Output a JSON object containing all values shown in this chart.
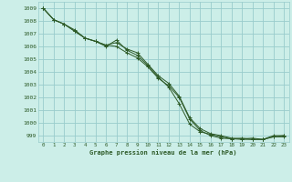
{
  "title": "Graphe pression niveau de la mer (hPa)",
  "background_color": "#cceee8",
  "grid_color": "#99cccc",
  "line_color": "#2d5a27",
  "xlim": [
    -0.5,
    23.5
  ],
  "ylim": [
    998.5,
    1009.5
  ],
  "yticks": [
    999,
    1000,
    1001,
    1002,
    1003,
    1004,
    1005,
    1006,
    1007,
    1008,
    1009
  ],
  "xticks": [
    0,
    1,
    2,
    3,
    4,
    5,
    6,
    7,
    8,
    9,
    10,
    11,
    12,
    13,
    14,
    15,
    16,
    17,
    18,
    19,
    20,
    21,
    22,
    23
  ],
  "series": [
    [
      1009.0,
      1008.1,
      1007.75,
      1007.2,
      1006.65,
      1006.4,
      1006.0,
      1006.5,
      1005.7,
      1005.3,
      1004.5,
      1003.6,
      1002.8,
      1001.5,
      999.9,
      999.3,
      999.1,
      998.9,
      998.75,
      998.7,
      998.7,
      998.7,
      998.9,
      998.9
    ],
    [
      1009.0,
      1008.1,
      1007.75,
      1007.2,
      1006.65,
      1006.4,
      1006.1,
      1006.0,
      1005.5,
      1005.1,
      1004.4,
      1003.5,
      1002.9,
      1002.0,
      1000.3,
      999.4,
      999.0,
      998.8,
      998.75,
      998.8,
      998.7,
      998.7,
      999.0,
      999.0
    ],
    [
      1009.0,
      1008.1,
      1007.75,
      1007.3,
      1006.65,
      1006.4,
      1006.1,
      1006.3,
      1005.8,
      1005.5,
      1004.6,
      1003.7,
      1003.1,
      1002.1,
      1000.4,
      999.55,
      999.15,
      999.0,
      998.8,
      998.75,
      998.8,
      998.7,
      998.9,
      999.0
    ]
  ]
}
